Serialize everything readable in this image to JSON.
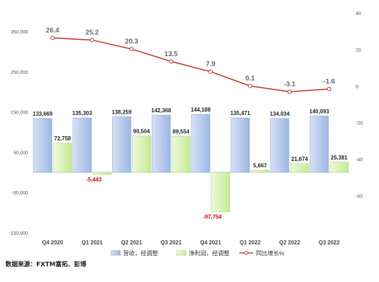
{
  "chart_data": {
    "type": "bar",
    "categories": [
      "Q4 2020",
      "Q1 2021",
      "Q2 2021",
      "Q3 2021",
      "Q4 2021",
      "Q1 2022",
      "Q2 2022",
      "Q3 2022"
    ],
    "series": [
      {
        "name": "营收，经调整",
        "type": "bar",
        "axis": "left",
        "values": [
          133669,
          135303,
          138259,
          142368,
          144188,
          135471,
          134034,
          140093
        ],
        "labels": [
          "133,669",
          "135,303",
          "138,259",
          "142,368",
          "144,188",
          "135,471",
          "134,034",
          "140,093"
        ],
        "color": "#b4c7e7"
      },
      {
        "name": "净利润，经调整",
        "type": "bar",
        "axis": "left",
        "values": [
          72758,
          -5443,
          90504,
          89554,
          -97754,
          5667,
          21674,
          25381
        ],
        "labels": [
          "72,758",
          "-5,443",
          "90,504",
          "89,554",
          "-97,754",
          "5,667",
          "21,674",
          "25,381"
        ],
        "color": "#d9f2b4"
      },
      {
        "name": "同比增长%",
        "type": "line",
        "axis": "right",
        "values": [
          26.4,
          25.2,
          20.3,
          13.5,
          7.9,
          0.1,
          -3.1,
          -1.6
        ],
        "labels": [
          "26.4",
          "25.2",
          "20.3",
          "13.5",
          "7.9",
          "0.1",
          "-3.1",
          "-1.6"
        ],
        "color": "#c0392b"
      }
    ],
    "left_axis": {
      "ylim": [
        -150000,
        350000
      ],
      "ticks": [
        350000,
        250000,
        150000,
        50000,
        -50000,
        -150000
      ],
      "tick_labels": [
        "350,000",
        "250,000",
        "150,000",
        "50,000",
        "-50,000",
        "-150,000"
      ]
    },
    "right_axis": {
      "ylim": [
        -60,
        40
      ],
      "ticks": [
        40,
        20,
        0,
        -20,
        -40,
        -60
      ],
      "tick_labels": [
        "40",
        "20",
        "0",
        "-20",
        "-40",
        "-60"
      ]
    },
    "negative_label_color": "#e00000",
    "grid": false,
    "legend_position": "bottom-center"
  },
  "source_text": "数据来源：FXTM富拓、彭博"
}
